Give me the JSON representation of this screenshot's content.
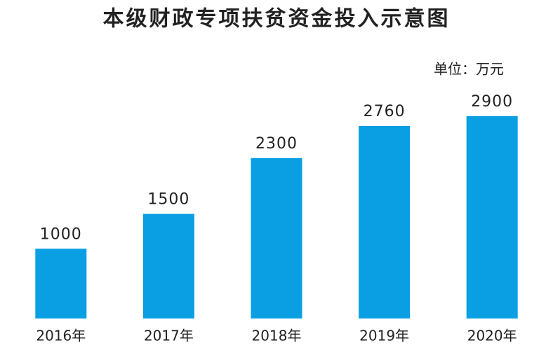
{
  "chart_data": {
    "type": "bar",
    "title": "本级财政专项扶贫资金投入示意图",
    "unit": "单位：万元",
    "categories": [
      "2016年",
      "2017年",
      "2018年",
      "2019年",
      "2020年"
    ],
    "values": [
      1000,
      1500,
      2300,
      2760,
      2900
    ],
    "color": "#0a9fe3"
  }
}
